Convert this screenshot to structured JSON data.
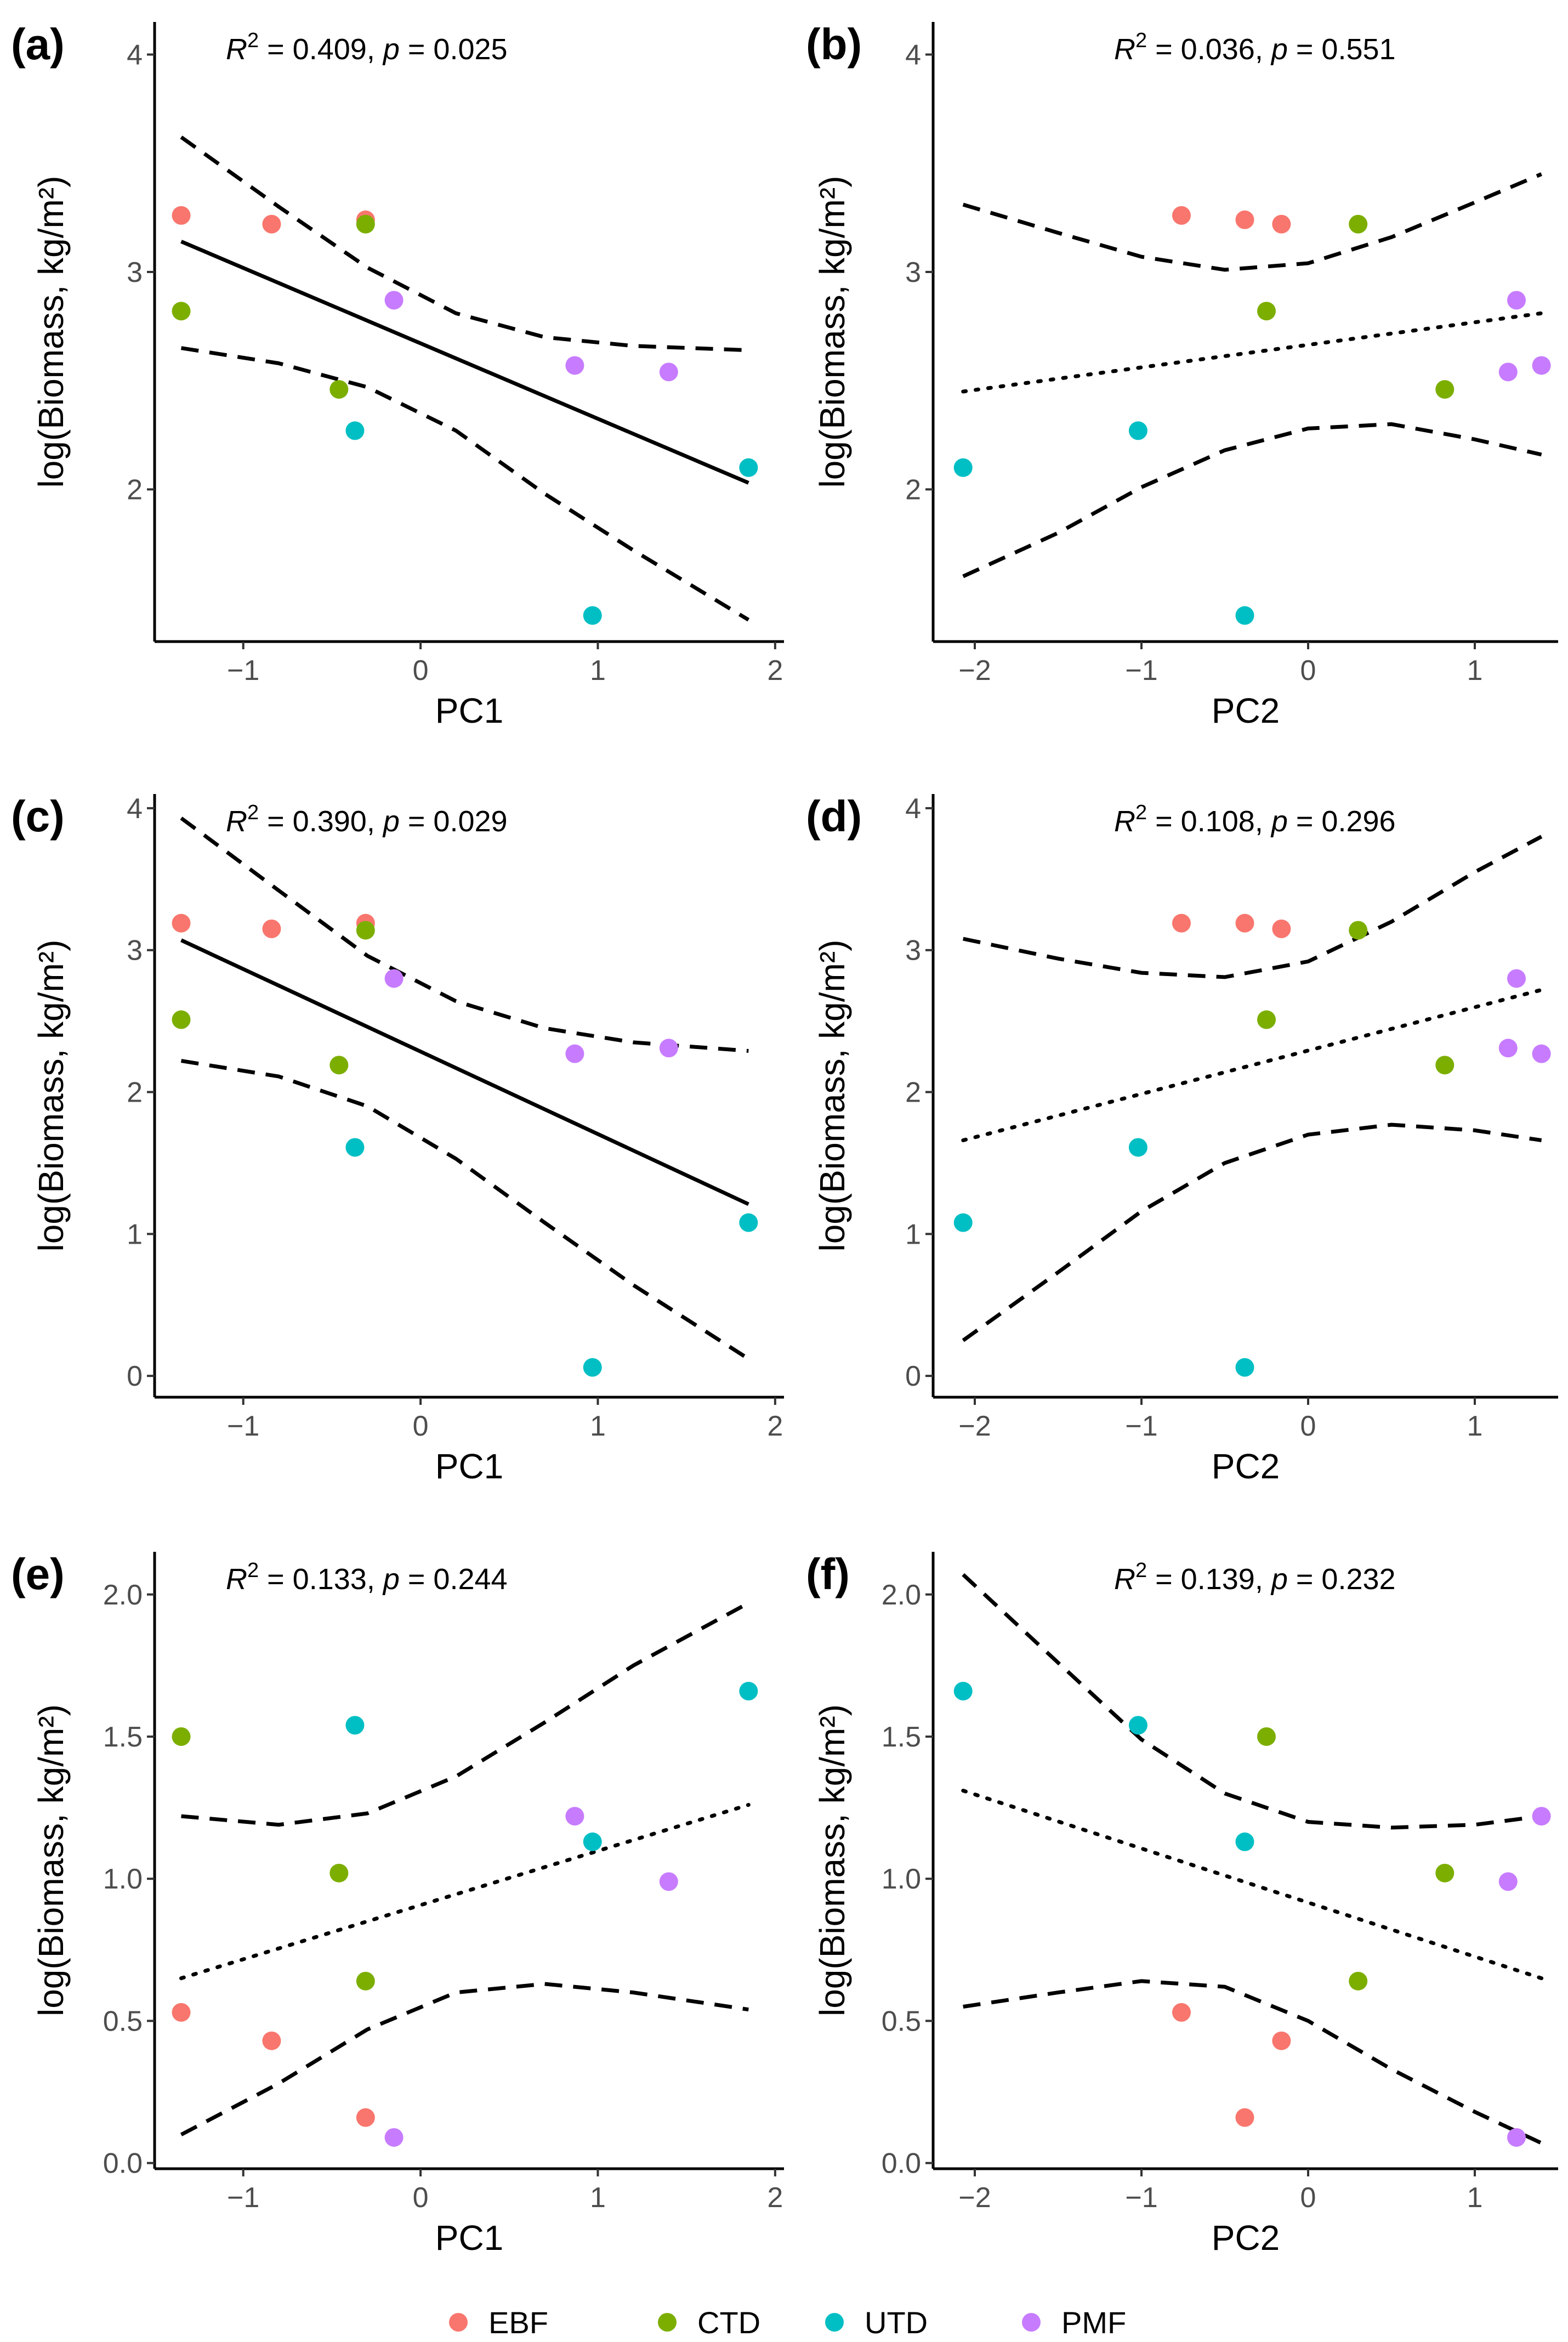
{
  "figure": {
    "groups": [
      {
        "name": "EBF",
        "color": "#F8766D"
      },
      {
        "name": "CTD",
        "color": "#7CAE00"
      },
      {
        "name": "UTD",
        "color": "#00BFC4"
      },
      {
        "name": "PMF",
        "color": "#C77CFF"
      }
    ]
  },
  "chart_data": [
    {
      "type": "scatter",
      "panel_label": "(a)",
      "stats": {
        "r2_label": "R",
        "r2_exp": "2",
        "r2_value": "= 0.409,",
        "p_label": "p",
        "p_value": "=  0.025"
      },
      "xlabel": "PC1",
      "ylabel": "log(Biomass, kg/m²)",
      "xlim": [
        -1.5,
        2.05
      ],
      "ylim": [
        1.3,
        4.15
      ],
      "xticks": [
        -1,
        0,
        1,
        2
      ],
      "xtick_labels": [
        "−1",
        "0",
        "1",
        "2"
      ],
      "yticks": [
        2,
        3,
        4
      ],
      "ytick_labels": [
        "2",
        "3",
        "4"
      ],
      "points": [
        {
          "x": -1.35,
          "y": 3.26,
          "group": "EBF"
        },
        {
          "x": -0.84,
          "y": 3.22,
          "group": "EBF"
        },
        {
          "x": -0.31,
          "y": 3.24,
          "group": "EBF"
        },
        {
          "x": -1.35,
          "y": 2.82,
          "group": "CTD"
        },
        {
          "x": -0.31,
          "y": 3.22,
          "group": "CTD"
        },
        {
          "x": -0.46,
          "y": 2.46,
          "group": "CTD"
        },
        {
          "x": -0.37,
          "y": 2.27,
          "group": "UTD"
        },
        {
          "x": 0.97,
          "y": 1.42,
          "group": "UTD"
        },
        {
          "x": 1.85,
          "y": 2.1,
          "group": "UTD"
        },
        {
          "x": -0.15,
          "y": 2.87,
          "group": "PMF"
        },
        {
          "x": 0.87,
          "y": 2.57,
          "group": "PMF"
        },
        {
          "x": 1.4,
          "y": 2.54,
          "group": "PMF"
        }
      ],
      "fit": {
        "style": "solid",
        "x": [
          -1.35,
          1.85
        ],
        "y": [
          3.14,
          2.03
        ]
      },
      "ci_upper": {
        "x": [
          -1.35,
          -0.8,
          -0.3,
          0.2,
          0.7,
          1.2,
          1.85
        ],
        "y": [
          3.62,
          3.3,
          3.02,
          2.81,
          2.7,
          2.66,
          2.64
        ]
      },
      "ci_lower": {
        "x": [
          -1.35,
          -0.8,
          -0.3,
          0.2,
          0.7,
          1.2,
          1.85
        ],
        "y": [
          2.65,
          2.58,
          2.47,
          2.27,
          1.98,
          1.72,
          1.4
        ]
      }
    },
    {
      "type": "scatter",
      "panel_label": "(b)",
      "stats": {
        "r2_label": "R",
        "r2_exp": "2",
        "r2_value": "= 0.036,",
        "p_label": "p",
        "p_value": "=  0.551"
      },
      "xlabel": "PC2",
      "ylabel": "log(Biomass, kg/m²)",
      "xlim": [
        -2.25,
        1.5
      ],
      "ylim": [
        1.3,
        4.15
      ],
      "xticks": [
        -2,
        -1,
        0,
        1
      ],
      "xtick_labels": [
        "−2",
        "−1",
        "0",
        "1"
      ],
      "yticks": [
        2,
        3,
        4
      ],
      "ytick_labels": [
        "2",
        "3",
        "4"
      ],
      "points": [
        {
          "x": -0.76,
          "y": 3.26,
          "group": "EBF"
        },
        {
          "x": -0.38,
          "y": 3.24,
          "group": "EBF"
        },
        {
          "x": -0.16,
          "y": 3.22,
          "group": "EBF"
        },
        {
          "x": 0.3,
          "y": 3.22,
          "group": "CTD"
        },
        {
          "x": -0.25,
          "y": 2.82,
          "group": "CTD"
        },
        {
          "x": 0.82,
          "y": 2.46,
          "group": "CTD"
        },
        {
          "x": -2.07,
          "y": 2.1,
          "group": "UTD"
        },
        {
          "x": -1.02,
          "y": 2.27,
          "group": "UTD"
        },
        {
          "x": -0.38,
          "y": 1.42,
          "group": "UTD"
        },
        {
          "x": 1.25,
          "y": 2.87,
          "group": "PMF"
        },
        {
          "x": 1.2,
          "y": 2.54,
          "group": "PMF"
        },
        {
          "x": 1.4,
          "y": 2.57,
          "group": "PMF"
        }
      ],
      "fit": {
        "style": "dotted",
        "x": [
          -2.07,
          1.4
        ],
        "y": [
          2.45,
          2.81
        ]
      },
      "ci_upper": {
        "x": [
          -2.07,
          -1.5,
          -1.0,
          -0.5,
          0.0,
          0.5,
          1.0,
          1.4
        ],
        "y": [
          3.31,
          3.18,
          3.07,
          3.01,
          3.04,
          3.16,
          3.32,
          3.45
        ]
      },
      "ci_lower": {
        "x": [
          -2.07,
          -1.5,
          -1.0,
          -0.5,
          0.0,
          0.5,
          1.0,
          1.4
        ],
        "y": [
          1.6,
          1.8,
          2.01,
          2.18,
          2.28,
          2.3,
          2.23,
          2.16
        ]
      }
    },
    {
      "type": "scatter",
      "panel_label": "(c)",
      "stats": {
        "r2_label": "R",
        "r2_exp": "2",
        "r2_value": "= 0.390,",
        "p_label": "p",
        "p_value": "=  0.029"
      },
      "xlabel": "PC1",
      "ylabel": "log(Biomass, kg/m²)",
      "xlim": [
        -1.5,
        2.05
      ],
      "ylim": [
        -0.15,
        4.1
      ],
      "xticks": [
        -1,
        0,
        1,
        2
      ],
      "xtick_labels": [
        "−1",
        "0",
        "1",
        "2"
      ],
      "yticks": [
        0,
        1,
        2,
        3,
        4
      ],
      "ytick_labels": [
        "0",
        "1",
        "2",
        "3",
        "4"
      ],
      "points": [
        {
          "x": -1.35,
          "y": 3.19,
          "group": "EBF"
        },
        {
          "x": -0.84,
          "y": 3.15,
          "group": "EBF"
        },
        {
          "x": -0.31,
          "y": 3.19,
          "group": "EBF"
        },
        {
          "x": -1.35,
          "y": 2.51,
          "group": "CTD"
        },
        {
          "x": -0.31,
          "y": 3.14,
          "group": "CTD"
        },
        {
          "x": -0.46,
          "y": 2.19,
          "group": "CTD"
        },
        {
          "x": -0.37,
          "y": 1.61,
          "group": "UTD"
        },
        {
          "x": 0.97,
          "y": 0.06,
          "group": "UTD"
        },
        {
          "x": 1.85,
          "y": 1.08,
          "group": "UTD"
        },
        {
          "x": -0.15,
          "y": 2.8,
          "group": "PMF"
        },
        {
          "x": 0.87,
          "y": 2.27,
          "group": "PMF"
        },
        {
          "x": 1.4,
          "y": 2.31,
          "group": "PMF"
        }
      ],
      "fit": {
        "style": "solid",
        "x": [
          -1.35,
          1.85
        ],
        "y": [
          3.07,
          1.21
        ]
      },
      "ci_upper": {
        "x": [
          -1.35,
          -0.8,
          -0.3,
          0.2,
          0.7,
          1.2,
          1.85
        ],
        "y": [
          3.93,
          3.42,
          2.96,
          2.64,
          2.45,
          2.35,
          2.29
        ]
      },
      "ci_lower": {
        "x": [
          -1.35,
          -0.8,
          -0.3,
          0.2,
          0.7,
          1.2,
          1.85
        ],
        "y": [
          2.22,
          2.11,
          1.9,
          1.53,
          1.08,
          0.64,
          0.12
        ]
      }
    },
    {
      "type": "scatter",
      "panel_label": "(d)",
      "stats": {
        "r2_label": "R",
        "r2_exp": "2",
        "r2_value": "= 0.108,",
        "p_label": "p",
        "p_value": "=  0.296"
      },
      "xlabel": "PC2",
      "ylabel": "log(Biomass, kg/m²)",
      "xlim": [
        -2.25,
        1.5
      ],
      "ylim": [
        -0.15,
        4.1
      ],
      "xticks": [
        -2,
        -1,
        0,
        1
      ],
      "xtick_labels": [
        "−2",
        "−1",
        "0",
        "1"
      ],
      "yticks": [
        0,
        1,
        2,
        3,
        4
      ],
      "ytick_labels": [
        "0",
        "1",
        "2",
        "3",
        "4"
      ],
      "points": [
        {
          "x": -0.76,
          "y": 3.19,
          "group": "EBF"
        },
        {
          "x": -0.38,
          "y": 3.19,
          "group": "EBF"
        },
        {
          "x": -0.16,
          "y": 3.15,
          "group": "EBF"
        },
        {
          "x": 0.3,
          "y": 3.14,
          "group": "CTD"
        },
        {
          "x": -0.25,
          "y": 2.51,
          "group": "CTD"
        },
        {
          "x": 0.82,
          "y": 2.19,
          "group": "CTD"
        },
        {
          "x": -2.07,
          "y": 1.08,
          "group": "UTD"
        },
        {
          "x": -1.02,
          "y": 1.61,
          "group": "UTD"
        },
        {
          "x": -0.38,
          "y": 0.06,
          "group": "UTD"
        },
        {
          "x": 1.25,
          "y": 2.8,
          "group": "PMF"
        },
        {
          "x": 1.2,
          "y": 2.31,
          "group": "PMF"
        },
        {
          "x": 1.4,
          "y": 2.27,
          "group": "PMF"
        }
      ],
      "fit": {
        "style": "dotted",
        "x": [
          -2.07,
          1.4
        ],
        "y": [
          1.66,
          2.72
        ]
      },
      "ci_upper": {
        "x": [
          -2.07,
          -1.5,
          -1.0,
          -0.5,
          0.0,
          0.5,
          1.0,
          1.4
        ],
        "y": [
          3.08,
          2.94,
          2.84,
          2.81,
          2.92,
          3.2,
          3.55,
          3.8
        ]
      },
      "ci_lower": {
        "x": [
          -2.07,
          -1.5,
          -1.0,
          -0.5,
          0.0,
          0.5,
          1.0,
          1.4
        ],
        "y": [
          0.25,
          0.73,
          1.16,
          1.5,
          1.7,
          1.77,
          1.73,
          1.66
        ]
      }
    },
    {
      "type": "scatter",
      "panel_label": "(e)",
      "stats": {
        "r2_label": "R",
        "r2_exp": "2",
        "r2_value": "= 0.133,",
        "p_label": "p",
        "p_value": "=  0.244"
      },
      "xlabel": "PC1",
      "ylabel": "log(Biomass, kg/m²)",
      "xlim": [
        -1.5,
        2.05
      ],
      "ylim": [
        -0.02,
        2.15
      ],
      "xticks": [
        -1,
        0,
        1,
        2
      ],
      "xtick_labels": [
        "−1",
        "0",
        "1",
        "2"
      ],
      "yticks": [
        0.0,
        0.5,
        1.0,
        1.5,
        2.0
      ],
      "ytick_labels": [
        "0.0",
        "0.5",
        "1.0",
        "1.5",
        "2.0"
      ],
      "points": [
        {
          "x": -1.35,
          "y": 0.53,
          "group": "EBF"
        },
        {
          "x": -0.84,
          "y": 0.43,
          "group": "EBF"
        },
        {
          "x": -0.31,
          "y": 0.16,
          "group": "EBF"
        },
        {
          "x": -1.35,
          "y": 1.5,
          "group": "CTD"
        },
        {
          "x": -0.46,
          "y": 1.02,
          "group": "CTD"
        },
        {
          "x": -0.31,
          "y": 0.64,
          "group": "CTD"
        },
        {
          "x": -0.37,
          "y": 1.54,
          "group": "UTD"
        },
        {
          "x": 0.97,
          "y": 1.13,
          "group": "UTD"
        },
        {
          "x": 1.85,
          "y": 1.66,
          "group": "UTD"
        },
        {
          "x": -0.15,
          "y": 0.09,
          "group": "PMF"
        },
        {
          "x": 0.87,
          "y": 1.22,
          "group": "PMF"
        },
        {
          "x": 1.4,
          "y": 0.99,
          "group": "PMF"
        }
      ],
      "fit": {
        "style": "dotted",
        "x": [
          -1.35,
          1.85
        ],
        "y": [
          0.65,
          1.26
        ]
      },
      "ci_upper": {
        "x": [
          -1.35,
          -0.8,
          -0.3,
          0.2,
          0.7,
          1.2,
          1.85
        ],
        "y": [
          1.22,
          1.19,
          1.23,
          1.36,
          1.55,
          1.75,
          1.97
        ]
      },
      "ci_lower": {
        "x": [
          -1.35,
          -0.8,
          -0.3,
          0.2,
          0.7,
          1.2,
          1.85
        ],
        "y": [
          0.1,
          0.28,
          0.47,
          0.6,
          0.63,
          0.6,
          0.54
        ]
      }
    },
    {
      "type": "scatter",
      "panel_label": "(f)",
      "stats": {
        "r2_label": "R",
        "r2_exp": "2",
        "r2_value": "= 0.139,",
        "p_label": "p",
        "p_value": "=  0.232"
      },
      "xlabel": "PC2",
      "ylabel": "log(Biomass, kg/m²)",
      "xlim": [
        -2.25,
        1.5
      ],
      "ylim": [
        -0.02,
        2.15
      ],
      "xticks": [
        -2,
        -1,
        0,
        1
      ],
      "xtick_labels": [
        "−2",
        "−1",
        "0",
        "1"
      ],
      "yticks": [
        0.0,
        0.5,
        1.0,
        1.5,
        2.0
      ],
      "ytick_labels": [
        "0.0",
        "0.5",
        "1.0",
        "1.5",
        "2.0"
      ],
      "points": [
        {
          "x": -0.76,
          "y": 0.53,
          "group": "EBF"
        },
        {
          "x": -0.16,
          "y": 0.43,
          "group": "EBF"
        },
        {
          "x": -0.38,
          "y": 0.16,
          "group": "EBF"
        },
        {
          "x": -0.25,
          "y": 1.5,
          "group": "CTD"
        },
        {
          "x": 0.82,
          "y": 1.02,
          "group": "CTD"
        },
        {
          "x": 0.3,
          "y": 0.64,
          "group": "CTD"
        },
        {
          "x": -2.07,
          "y": 1.66,
          "group": "UTD"
        },
        {
          "x": -1.02,
          "y": 1.54,
          "group": "UTD"
        },
        {
          "x": -0.38,
          "y": 1.13,
          "group": "UTD"
        },
        {
          "x": 1.4,
          "y": 1.22,
          "group": "PMF"
        },
        {
          "x": 1.2,
          "y": 0.99,
          "group": "PMF"
        },
        {
          "x": 1.25,
          "y": 0.09,
          "group": "PMF"
        }
      ],
      "fit": {
        "style": "dotted",
        "x": [
          -2.07,
          1.4
        ],
        "y": [
          1.31,
          0.65
        ]
      },
      "ci_upper": {
        "x": [
          -2.07,
          -1.5,
          -1.0,
          -0.5,
          0.0,
          0.5,
          1.0,
          1.4
        ],
        "y": [
          2.07,
          1.76,
          1.49,
          1.3,
          1.2,
          1.18,
          1.19,
          1.22
        ]
      },
      "ci_lower": {
        "x": [
          -2.07,
          -1.5,
          -1.0,
          -0.5,
          0.0,
          0.5,
          1.0,
          1.4
        ],
        "y": [
          0.55,
          0.6,
          0.64,
          0.62,
          0.5,
          0.33,
          0.18,
          0.07
        ]
      }
    }
  ]
}
